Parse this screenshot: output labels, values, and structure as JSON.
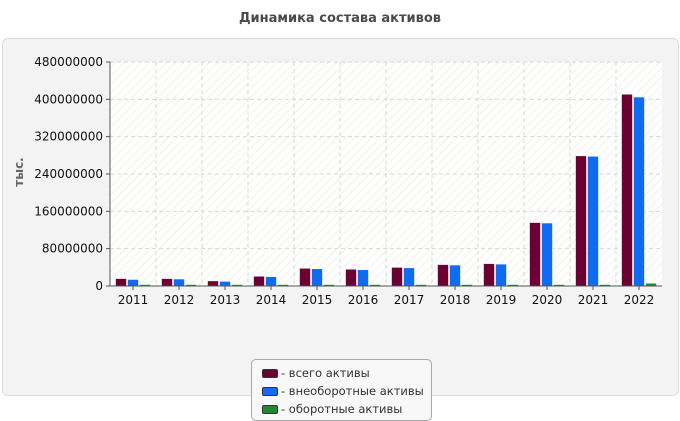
{
  "chart_data": {
    "type": "bar",
    "title": "Динамика состава активов",
    "ylabel": "тыс.",
    "xlabel": "",
    "ylim": [
      0,
      480000000
    ],
    "yticks": [
      "0",
      "80000000",
      "160000000",
      "240000000",
      "320000000",
      "400000000",
      "480000000"
    ],
    "grid": true,
    "legend_position": "bottom",
    "categories": [
      "2011",
      "2012",
      "2013",
      "2014",
      "2015",
      "2016",
      "2017",
      "2018",
      "2019",
      "2020",
      "2021",
      "2022"
    ],
    "series": [
      {
        "name": "всего активы",
        "color": "#6b0033",
        "values": [
          16000000,
          16000000,
          11000000,
          21000000,
          38000000,
          36000000,
          40000000,
          46000000,
          48000000,
          136000000,
          279000000,
          411000000
        ]
      },
      {
        "name": "внеоборотные активы",
        "color": "#0f6cf0",
        "values": [
          14000000,
          15000000,
          10000000,
          20000000,
          37000000,
          35000000,
          39000000,
          45000000,
          47000000,
          135000000,
          278000000,
          405000000
        ]
      },
      {
        "name": "оборотные активы",
        "color": "#1e8a2e",
        "values": [
          2000000,
          1000000,
          1000000,
          1000000,
          1500000,
          1000000,
          1000000,
          1500000,
          1500000,
          2000000,
          1500000,
          6000000
        ]
      }
    ]
  }
}
